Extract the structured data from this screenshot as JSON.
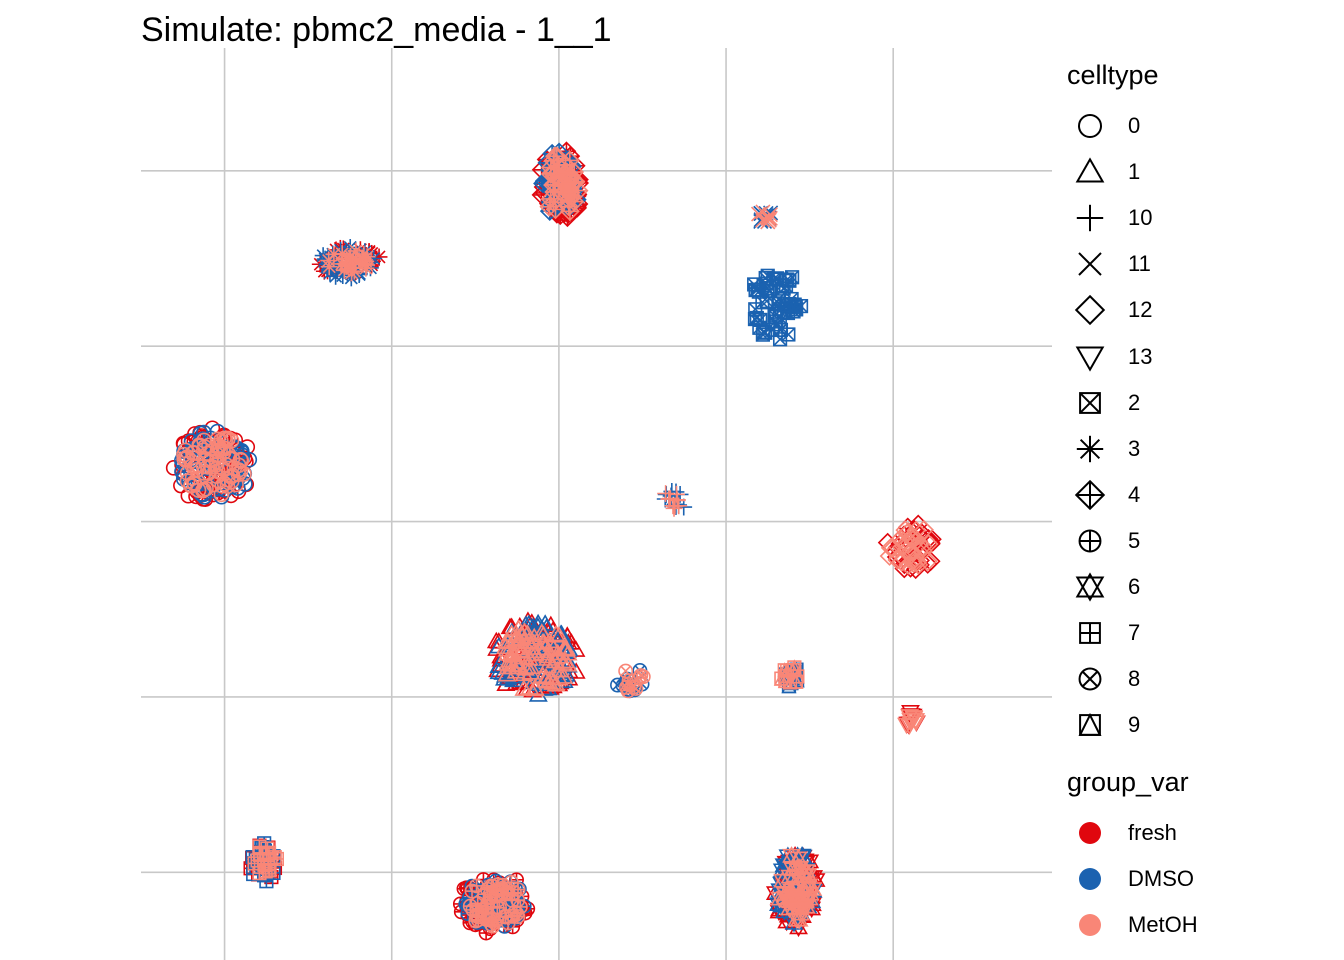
{
  "chart_data": {
    "type": "scatter",
    "title": "Simulate: pbmc2_media - 1__1",
    "xlabel": "",
    "ylabel": "",
    "grid": true,
    "axis_tick_labels": false,
    "legend_placement": "right",
    "legends": [
      {
        "title": "celltype",
        "aesthetic": "shape",
        "entries": [
          {
            "label": "0",
            "shape": "circle"
          },
          {
            "label": "1",
            "shape": "triangle"
          },
          {
            "label": "10",
            "shape": "plus"
          },
          {
            "label": "11",
            "shape": "cross"
          },
          {
            "label": "12",
            "shape": "diamond"
          },
          {
            "label": "13",
            "shape": "triangle-down"
          },
          {
            "label": "2",
            "shape": "square-cross"
          },
          {
            "label": "3",
            "shape": "asterisk"
          },
          {
            "label": "4",
            "shape": "diamond-plus"
          },
          {
            "label": "5",
            "shape": "circle-plus"
          },
          {
            "label": "6",
            "shape": "star-of-david"
          },
          {
            "label": "7",
            "shape": "square-plus"
          },
          {
            "label": "8",
            "shape": "circle-cross"
          },
          {
            "label": "9",
            "shape": "square-triangle"
          }
        ]
      },
      {
        "title": "group_var",
        "aesthetic": "color",
        "entries": [
          {
            "label": "fresh",
            "color": "#E0070E"
          },
          {
            "label": "DMSO",
            "color": "#1B62B0"
          },
          {
            "label": "MetOH",
            "color": "#F98677"
          }
        ]
      }
    ],
    "xlim": [
      0,
      5.45
    ],
    "ylim": [
      0,
      5.2
    ],
    "clusters": [
      {
        "celltype": "0",
        "shape": "circle",
        "x": 0.43,
        "y": 2.82,
        "rx": 0.24,
        "ry": 0.21,
        "groups": [
          "fresh",
          "DMSO",
          "MetOH"
        ]
      },
      {
        "celltype": "1",
        "shape": "triangle",
        "x": 2.36,
        "y": 1.72,
        "rx": 0.25,
        "ry": 0.22,
        "groups": [
          "fresh",
          "DMSO",
          "MetOH"
        ]
      },
      {
        "celltype": "10",
        "shape": "plus",
        "x": 3.2,
        "y": 2.64,
        "rx": 0.07,
        "ry": 0.06,
        "groups": [
          "DMSO",
          "MetOH"
        ]
      },
      {
        "celltype": "11",
        "shape": "cross",
        "x": 3.73,
        "y": 4.24,
        "rx": 0.04,
        "ry": 0.04,
        "groups": [
          "DMSO",
          "MetOH"
        ]
      },
      {
        "celltype": "12",
        "shape": "diamond",
        "x": 4.61,
        "y": 2.36,
        "rx": 0.15,
        "ry": 0.14,
        "groups": [
          "fresh",
          "MetOH"
        ]
      },
      {
        "celltype": "13",
        "shape": "triangle-down",
        "x": 4.61,
        "y": 1.37,
        "rx": 0.04,
        "ry": 0.04,
        "groups": [
          "fresh",
          "MetOH"
        ]
      },
      {
        "celltype": "2",
        "shape": "square-cross",
        "x": 3.79,
        "y": 3.72,
        "rx": 0.16,
        "ry": 0.21,
        "groups": [
          "DMSO"
        ]
      },
      {
        "celltype": "3",
        "shape": "asterisk",
        "x": 1.25,
        "y": 3.98,
        "rx": 0.19,
        "ry": 0.09,
        "groups": [
          "fresh",
          "DMSO",
          "MetOH"
        ]
      },
      {
        "celltype": "4",
        "shape": "diamond-plus",
        "x": 2.51,
        "y": 4.42,
        "rx": 0.12,
        "ry": 0.22,
        "groups": [
          "fresh",
          "DMSO",
          "MetOH"
        ]
      },
      {
        "celltype": "5",
        "shape": "circle-plus",
        "x": 2.11,
        "y": 0.33,
        "rx": 0.21,
        "ry": 0.16,
        "groups": [
          "fresh",
          "DMSO",
          "MetOH"
        ]
      },
      {
        "celltype": "6",
        "shape": "star-of-david",
        "x": 3.92,
        "y": 0.4,
        "rx": 0.12,
        "ry": 0.23,
        "groups": [
          "fresh",
          "DMSO",
          "MetOH"
        ]
      },
      {
        "celltype": "7",
        "shape": "square-plus",
        "x": 0.74,
        "y": 0.57,
        "rx": 0.09,
        "ry": 0.11,
        "groups": [
          "fresh",
          "DMSO",
          "MetOH"
        ]
      },
      {
        "celltype": "8",
        "shape": "circle-cross",
        "x": 2.93,
        "y": 1.59,
        "rx": 0.08,
        "ry": 0.06,
        "groups": [
          "DMSO",
          "MetOH"
        ]
      },
      {
        "celltype": "9",
        "shape": "square-triangle",
        "x": 3.88,
        "y": 1.61,
        "rx": 0.06,
        "ry": 0.06,
        "groups": [
          "DMSO",
          "MetOH"
        ]
      }
    ]
  }
}
